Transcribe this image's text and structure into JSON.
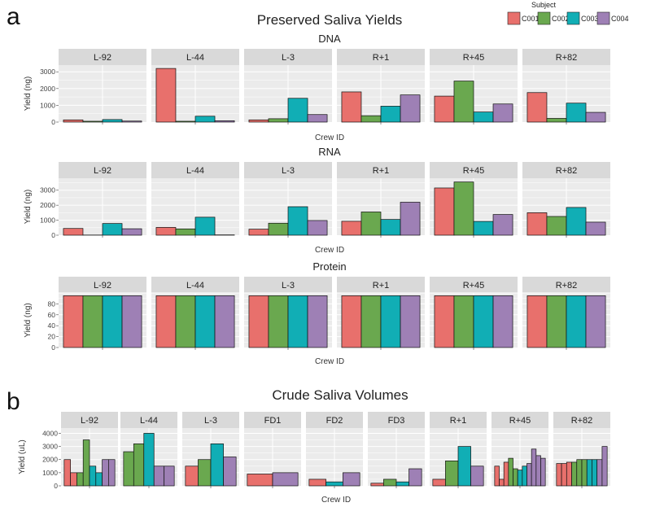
{
  "figure": {
    "panel_a_letter": "a",
    "panel_b_letter": "b",
    "title_a": "Preserved Saliva Yields",
    "title_b": "Crude Saliva Volumes"
  },
  "legend": {
    "title": "Subject",
    "items": [
      {
        "label": "C001",
        "color": "#E8706C"
      },
      {
        "label": "C002",
        "color": "#6AA84F"
      },
      {
        "label": "C003",
        "color": "#11AEB5"
      },
      {
        "label": "C004",
        "color": "#9E80B5"
      }
    ]
  },
  "chart_data": [
    {
      "type": "bar",
      "title": "DNA",
      "xlabel": "Crew ID",
      "ylabel": "Yield (ng)",
      "ylim": [
        0,
        3400
      ],
      "yticks": [
        0,
        1000,
        2000,
        3000
      ],
      "facets": [
        "L-92",
        "L-44",
        "L-3",
        "R+1",
        "R+45",
        "R+82"
      ],
      "series": [
        {
          "name": "C001",
          "values": [
            130,
            3200,
            130,
            1800,
            1550,
            1760
          ]
        },
        {
          "name": "C002",
          "values": [
            50,
            50,
            200,
            380,
            2450,
            220
          ]
        },
        {
          "name": "C003",
          "values": [
            150,
            350,
            1420,
            950,
            600,
            1130
          ]
        },
        {
          "name": "C004",
          "values": [
            60,
            80,
            450,
            1620,
            1080,
            580
          ]
        }
      ]
    },
    {
      "type": "bar",
      "title": "RNA",
      "xlabel": "Crew ID",
      "ylabel": "Yield (ng)",
      "ylim": [
        0,
        3800
      ],
      "yticks": [
        0,
        1000,
        2000,
        3000
      ],
      "facets": [
        "L-92",
        "L-44",
        "L-3",
        "R+1",
        "R+45",
        "R+82"
      ],
      "series": [
        {
          "name": "C001",
          "values": [
            450,
            520,
            400,
            930,
            3150,
            1500
          ]
        },
        {
          "name": "C002",
          "values": [
            10,
            420,
            800,
            1550,
            3550,
            1250
          ]
        },
        {
          "name": "C003",
          "values": [
            780,
            1200,
            1900,
            1050,
            920,
            1850
          ]
        },
        {
          "name": "C004",
          "values": [
            430,
            20,
            980,
            2200,
            1380,
            870
          ]
        }
      ]
    },
    {
      "type": "bar",
      "title": "Protein",
      "xlabel": "Crew ID",
      "ylabel": "Yield (ng)",
      "ylim": [
        0,
        100
      ],
      "yticks": [
        0,
        20,
        40,
        60,
        80
      ],
      "facets": [
        "L-92",
        "L-44",
        "L-3",
        "R+1",
        "R+45",
        "R+82"
      ],
      "series": [
        {
          "name": "C001",
          "values": [
            95,
            95,
            95,
            95,
            95,
            95
          ]
        },
        {
          "name": "C002",
          "values": [
            95,
            95,
            95,
            95,
            95,
            95
          ]
        },
        {
          "name": "C003",
          "values": [
            95,
            95,
            95,
            95,
            95,
            95
          ]
        },
        {
          "name": "C004",
          "values": [
            95,
            95,
            95,
            95,
            95,
            95
          ]
        }
      ]
    },
    {
      "type": "bar",
      "title": "Crude Saliva Volumes",
      "xlabel": "Crew ID",
      "ylabel": "Yield (uL)",
      "ylim": [
        0,
        4400
      ],
      "yticks": [
        0,
        1000,
        2000,
        3000,
        4000
      ],
      "facets": [
        {
          "name": "L-92",
          "bars": [
            {
              "s": 0,
              "v": 2000
            },
            {
              "s": 0,
              "v": 1000
            },
            {
              "s": 1,
              "v": 1000
            },
            {
              "s": 1,
              "v": 3500
            },
            {
              "s": 2,
              "v": 1500
            },
            {
              "s": 2,
              "v": 1000
            },
            {
              "s": 3,
              "v": 2000
            },
            {
              "s": 3,
              "v": 2000
            }
          ]
        },
        {
          "name": "L-44",
          "bars": [
            {
              "s": 1,
              "v": 2600
            },
            {
              "s": 1,
              "v": 3200
            },
            {
              "s": 2,
              "v": 4000
            },
            {
              "s": 3,
              "v": 1500
            },
            {
              "s": 3,
              "v": 1500
            }
          ]
        },
        {
          "name": "L-3",
          "bars": [
            {
              "s": 0,
              "v": 1500
            },
            {
              "s": 1,
              "v": 2000
            },
            {
              "s": 2,
              "v": 3200
            },
            {
              "s": 3,
              "v": 2200
            }
          ]
        },
        {
          "name": "FD1",
          "bars": [
            {
              "s": 0,
              "v": 900
            },
            {
              "s": 3,
              "v": 1000
            }
          ]
        },
        {
          "name": "FD2",
          "bars": [
            {
              "s": 0,
              "v": 500
            },
            {
              "s": 2,
              "v": 300
            },
            {
              "s": 3,
              "v": 1000
            }
          ]
        },
        {
          "name": "FD3",
          "bars": [
            {
              "s": 0,
              "v": 200
            },
            {
              "s": 1,
              "v": 500
            },
            {
              "s": 2,
              "v": 300
            },
            {
              "s": 3,
              "v": 1300
            }
          ]
        },
        {
          "name": "R+1",
          "bars": [
            {
              "s": 0,
              "v": 500
            },
            {
              "s": 1,
              "v": 1900
            },
            {
              "s": 2,
              "v": 3000
            },
            {
              "s": 3,
              "v": 1500
            }
          ]
        },
        {
          "name": "R+45",
          "bars": [
            {
              "s": 0,
              "v": 1500
            },
            {
              "s": 0,
              "v": 500
            },
            {
              "s": 0,
              "v": 1800
            },
            {
              "s": 1,
              "v": 2100
            },
            {
              "s": 1,
              "v": 1300
            },
            {
              "s": 2,
              "v": 1200
            },
            {
              "s": 2,
              "v": 1500
            },
            {
              "s": 3,
              "v": 1700
            },
            {
              "s": 3,
              "v": 2800
            },
            {
              "s": 3,
              "v": 2300
            },
            {
              "s": 3,
              "v": 2100
            }
          ]
        },
        {
          "name": "R+82",
          "bars": [
            {
              "s": 0,
              "v": 1700
            },
            {
              "s": 0,
              "v": 1700
            },
            {
              "s": 0,
              "v": 1800
            },
            {
              "s": 1,
              "v": 1800
            },
            {
              "s": 1,
              "v": 2000
            },
            {
              "s": 1,
              "v": 2000
            },
            {
              "s": 2,
              "v": 2000
            },
            {
              "s": 2,
              "v": 2000
            },
            {
              "s": 3,
              "v": 2000
            },
            {
              "s": 3,
              "v": 3000
            }
          ]
        }
      ]
    }
  ]
}
